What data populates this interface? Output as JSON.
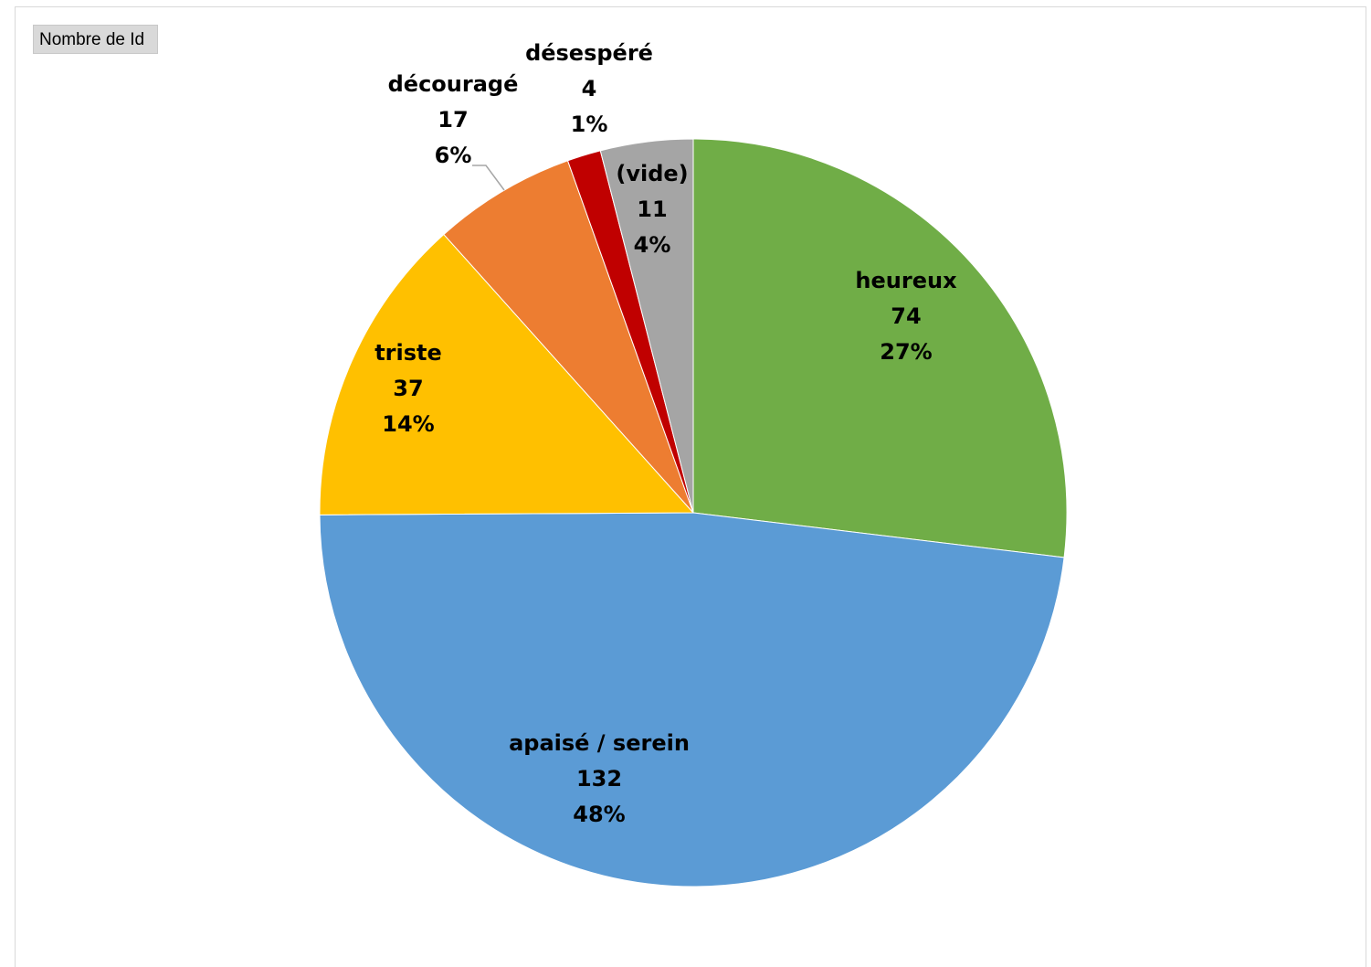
{
  "field_button": {
    "label": "Nombre de Id"
  },
  "colors": {
    "heureux": "#70ad47",
    "apaise_serein": "#5b9bd5",
    "triste": "#ffc000",
    "decourage": "#ed7d31",
    "desespere": "#c00000",
    "vide": "#a5a5a5"
  },
  "chart_data": {
    "type": "pie",
    "title": "",
    "categories": [
      "heureux",
      "apaisé / serein",
      "triste",
      "découragé",
      "désespéré",
      "(vide)"
    ],
    "values": [
      74,
      132,
      37,
      17,
      4,
      11
    ],
    "percent_labels": [
      "27%",
      "48%",
      "14%",
      "6%",
      "1%",
      "4%"
    ],
    "value_labels": [
      "74",
      "132",
      "37",
      "17",
      "4",
      "11"
    ],
    "colors": [
      "#70ad47",
      "#5b9bd5",
      "#ffc000",
      "#ed7d31",
      "#c00000",
      "#a5a5a5"
    ],
    "start_angle_deg": 0,
    "direction": "clockwise",
    "legend": "none",
    "data_labels": "category, value, percent"
  }
}
